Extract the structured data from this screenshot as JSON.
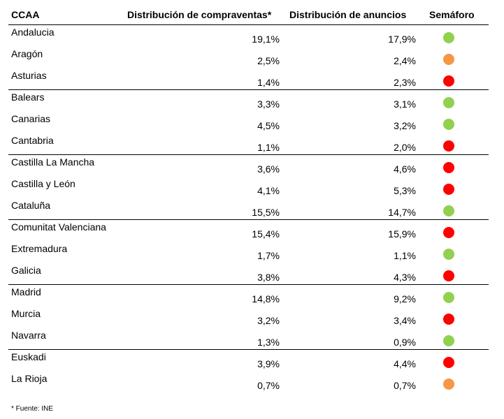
{
  "headers": {
    "ccaa": "CCAA",
    "compraventas": "Distribución de compraventas*",
    "anuncios": "Distribución  de anuncios",
    "semaforo": "Semáforo"
  },
  "colors": {
    "green": "#92d050",
    "orange": "#f79646",
    "red": "#ff0000"
  },
  "rows": [
    {
      "name": "Andalucia",
      "compraventas": "19,1%",
      "anuncios": "17,9%",
      "semaforo": "green"
    },
    {
      "name": "Aragón",
      "compraventas": "2,5%",
      "anuncios": "2,4%",
      "semaforo": "orange"
    },
    {
      "name": "Asturias",
      "compraventas": "1,4%",
      "anuncios": "2,3%",
      "semaforo": "red"
    },
    {
      "name": "Balears",
      "compraventas": "3,3%",
      "anuncios": "3,1%",
      "semaforo": "green"
    },
    {
      "name": "Canarias",
      "compraventas": "4,5%",
      "anuncios": "3,2%",
      "semaforo": "green"
    },
    {
      "name": "Cantabria",
      "compraventas": "1,1%",
      "anuncios": "2,0%",
      "semaforo": "red"
    },
    {
      "name": "Castilla La Mancha",
      "compraventas": "3,6%",
      "anuncios": "4,6%",
      "semaforo": "red"
    },
    {
      "name": "Castilla y León",
      "compraventas": "4,1%",
      "anuncios": "5,3%",
      "semaforo": "red"
    },
    {
      "name": "Cataluña",
      "compraventas": "15,5%",
      "anuncios": "14,7%",
      "semaforo": "green"
    },
    {
      "name": "Comunitat Valenciana",
      "compraventas": "15,4%",
      "anuncios": "15,9%",
      "semaforo": "red"
    },
    {
      "name": "Extremadura",
      "compraventas": "1,7%",
      "anuncios": "1,1%",
      "semaforo": "green"
    },
    {
      "name": "Galicia",
      "compraventas": "3,8%",
      "anuncios": "4,3%",
      "semaforo": "red"
    },
    {
      "name": "Madrid",
      "compraventas": "14,8%",
      "anuncios": "9,2%",
      "semaforo": "green"
    },
    {
      "name": "Murcia",
      "compraventas": "3,2%",
      "anuncios": "3,4%",
      "semaforo": "red"
    },
    {
      "name": "Navarra",
      "compraventas": "1,3%",
      "anuncios": "0,9%",
      "semaforo": "green"
    },
    {
      "name": "Euskadi",
      "compraventas": "3,9%",
      "anuncios": "4,4%",
      "semaforo": "red"
    },
    {
      "name": "La Rioja",
      "compraventas": "0,7%",
      "anuncios": "0,7%",
      "semaforo": "orange"
    }
  ],
  "footnote": "* Fuente: INE"
}
